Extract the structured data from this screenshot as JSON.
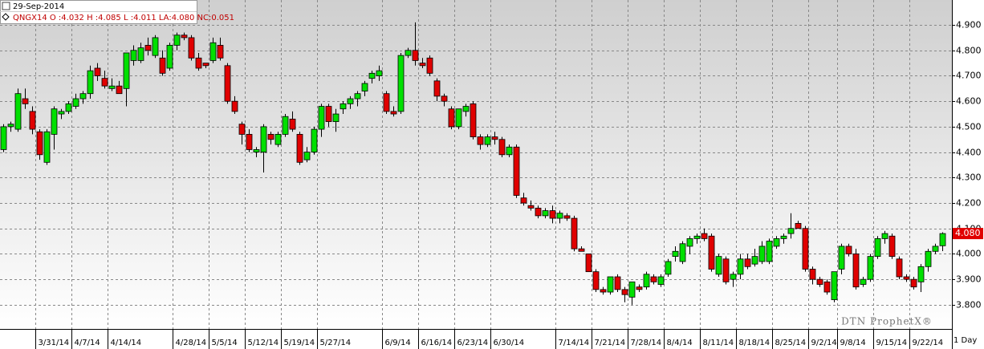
{
  "chart_data": {
    "type": "candlestick",
    "date": "29-Sep-2014",
    "legend_text": "QNGX14 O :4.032 H :4.085 L :4.011 LA:4.080 NC:0.051",
    "watermark": "DTN ProphetX®",
    "period": "1 Day",
    "up_color": "#00e000",
    "down_color": "#e00000",
    "grid": true,
    "last_label": {
      "value": 4.08,
      "label": "4.080"
    },
    "ylim": [
      3.705,
      4.998
    ],
    "yticks": [
      {
        "value": 3.8,
        "label": "3.800"
      },
      {
        "value": 3.9,
        "label": "3.900"
      },
      {
        "value": 4.0,
        "label": "4.000"
      },
      {
        "value": 4.1,
        "label": "4.100"
      },
      {
        "value": 4.2,
        "label": "4.200"
      },
      {
        "value": 4.3,
        "label": "4.300"
      },
      {
        "value": 4.4,
        "label": "4.400"
      },
      {
        "value": 4.5,
        "label": "4.500"
      },
      {
        "value": 4.6,
        "label": "4.600"
      },
      {
        "value": 4.7,
        "label": "4.700"
      },
      {
        "value": 4.8,
        "label": "4.800"
      },
      {
        "value": 4.9,
        "label": "4.900"
      }
    ],
    "categories": [
      null,
      null,
      null,
      null,
      null,
      "3/31/14",
      null,
      null,
      null,
      null,
      "4/7/14",
      null,
      null,
      null,
      null,
      "4/14/14",
      null,
      null,
      null,
      null,
      null,
      null,
      null,
      null,
      "4/28/14",
      null,
      null,
      null,
      null,
      "5/5/14",
      null,
      null,
      null,
      null,
      "5/12/14",
      null,
      null,
      null,
      null,
      "5/19/14",
      null,
      null,
      null,
      null,
      "5/27/14",
      null,
      null,
      null,
      null,
      null,
      null,
      null,
      null,
      "6/9/14",
      null,
      null,
      null,
      null,
      "6/16/14",
      null,
      null,
      null,
      null,
      "6/23/14",
      null,
      null,
      null,
      null,
      "6/30/14",
      null,
      null,
      null,
      null,
      null,
      null,
      null,
      null,
      "7/14/14",
      null,
      null,
      null,
      null,
      "7/21/14",
      null,
      null,
      null,
      null,
      "7/28/14",
      null,
      null,
      null,
      null,
      "8/4/14",
      null,
      null,
      null,
      null,
      "8/11/14",
      null,
      null,
      null,
      null,
      "8/18/14",
      null,
      null,
      null,
      null,
      "8/25/14",
      null,
      null,
      null,
      null,
      "9/2/14",
      null,
      null,
      null,
      "9/8/14",
      null,
      null,
      null,
      null,
      "9/15/14",
      null,
      null,
      null,
      null,
      "9/22/14",
      null,
      null,
      null,
      null
    ],
    "ohlc": [
      [
        4.41,
        4.51,
        4.4,
        4.5
      ],
      [
        4.5,
        4.52,
        4.48,
        4.51
      ],
      [
        4.49,
        4.65,
        4.48,
        4.63
      ],
      [
        4.61,
        4.65,
        4.57,
        4.59
      ],
      [
        4.56,
        4.58,
        4.47,
        4.49
      ],
      [
        4.48,
        4.49,
        4.37,
        4.39
      ],
      [
        4.36,
        4.49,
        4.35,
        4.48
      ],
      [
        4.47,
        4.58,
        4.41,
        4.57
      ],
      [
        4.55,
        4.57,
        4.53,
        4.56
      ],
      [
        4.56,
        4.6,
        4.55,
        4.59
      ],
      [
        4.58,
        4.63,
        4.57,
        4.61
      ],
      [
        4.61,
        4.64,
        4.59,
        4.63
      ],
      [
        4.63,
        4.74,
        4.61,
        4.72
      ],
      [
        4.73,
        4.75,
        4.68,
        4.7
      ],
      [
        4.69,
        4.72,
        4.65,
        4.66
      ],
      [
        4.65,
        4.69,
        4.64,
        4.66
      ],
      [
        4.66,
        4.68,
        4.63,
        4.63
      ],
      [
        4.65,
        4.79,
        4.58,
        4.79
      ],
      [
        4.76,
        4.82,
        4.74,
        4.8
      ],
      [
        4.76,
        4.83,
        4.75,
        4.81
      ],
      [
        4.82,
        4.85,
        4.78,
        4.8
      ],
      [
        4.78,
        4.86,
        4.77,
        4.85
      ],
      [
        4.77,
        4.8,
        4.7,
        4.71
      ],
      [
        4.73,
        4.83,
        4.72,
        4.82
      ],
      [
        4.82,
        4.87,
        4.8,
        4.86
      ],
      [
        4.86,
        4.87,
        4.84,
        4.85
      ],
      [
        4.85,
        4.86,
        4.76,
        4.77
      ],
      [
        4.77,
        4.79,
        4.72,
        4.73
      ],
      [
        4.75,
        4.75,
        4.73,
        4.74
      ],
      [
        4.76,
        4.85,
        4.75,
        4.83
      ],
      [
        4.82,
        4.85,
        4.76,
        4.77
      ],
      [
        4.74,
        4.75,
        4.59,
        4.6
      ],
      [
        4.6,
        4.62,
        4.55,
        4.56
      ],
      [
        4.51,
        4.52,
        4.43,
        4.47
      ],
      [
        4.47,
        4.49,
        4.4,
        4.41
      ],
      [
        4.4,
        4.42,
        4.38,
        4.41
      ],
      [
        4.4,
        4.51,
        4.32,
        4.5
      ],
      [
        4.47,
        4.48,
        4.43,
        4.45
      ],
      [
        4.43,
        4.48,
        4.42,
        4.47
      ],
      [
        4.47,
        4.55,
        4.46,
        4.54
      ],
      [
        4.53,
        4.56,
        4.48,
        4.49
      ],
      [
        4.47,
        4.48,
        4.35,
        4.36
      ],
      [
        4.37,
        4.42,
        4.36,
        4.4
      ],
      [
        4.4,
        4.5,
        4.39,
        4.49
      ],
      [
        4.49,
        4.59,
        4.46,
        4.58
      ],
      [
        4.58,
        4.59,
        4.5,
        4.52
      ],
      [
        4.52,
        4.57,
        4.48,
        4.55
      ],
      [
        4.57,
        4.6,
        4.55,
        4.59
      ],
      [
        4.59,
        4.62,
        4.57,
        4.61
      ],
      [
        4.61,
        4.64,
        4.58,
        4.63
      ],
      [
        4.64,
        4.68,
        4.62,
        4.67
      ],
      [
        4.69,
        4.72,
        4.67,
        4.71
      ],
      [
        4.7,
        4.74,
        4.68,
        4.72
      ],
      [
        4.63,
        4.64,
        4.55,
        4.56
      ],
      [
        4.56,
        4.58,
        4.54,
        4.55
      ],
      [
        4.56,
        4.79,
        4.55,
        4.78
      ],
      [
        4.78,
        4.81,
        4.77,
        4.8
      ],
      [
        4.8,
        4.91,
        4.74,
        4.76
      ],
      [
        4.75,
        4.77,
        4.73,
        4.74
      ],
      [
        4.77,
        4.78,
        4.7,
        4.71
      ],
      [
        4.68,
        4.69,
        4.6,
        4.62
      ],
      [
        4.62,
        4.63,
        4.58,
        4.6
      ],
      [
        4.57,
        4.58,
        4.49,
        4.5
      ],
      [
        4.5,
        4.57,
        4.49,
        4.57
      ],
      [
        4.56,
        4.59,
        4.54,
        4.58
      ],
      [
        4.59,
        4.6,
        4.45,
        4.46
      ],
      [
        4.46,
        4.47,
        4.41,
        4.43
      ],
      [
        4.43,
        4.47,
        4.42,
        4.46
      ],
      [
        4.46,
        4.48,
        4.43,
        4.45
      ],
      [
        4.45,
        4.46,
        4.38,
        4.39
      ],
      [
        4.39,
        4.43,
        4.38,
        4.42
      ],
      [
        4.42,
        4.43,
        4.22,
        4.23
      ],
      [
        4.22,
        4.24,
        4.19,
        4.2
      ],
      [
        4.19,
        4.21,
        4.17,
        4.18
      ],
      [
        4.18,
        4.19,
        4.14,
        4.15
      ],
      [
        4.15,
        4.18,
        4.14,
        4.17
      ],
      [
        4.17,
        4.19,
        4.12,
        4.14
      ],
      [
        4.14,
        4.17,
        4.12,
        4.16
      ],
      [
        4.15,
        4.16,
        4.13,
        4.14
      ],
      [
        4.14,
        4.15,
        4.01,
        4.02
      ],
      [
        4.02,
        4.03,
        4.01,
        4.01
      ],
      [
        4.0,
        4.0,
        3.93,
        3.93
      ],
      [
        3.93,
        3.94,
        3.85,
        3.86
      ],
      [
        3.86,
        3.87,
        3.84,
        3.85
      ],
      [
        3.85,
        3.91,
        3.84,
        3.91
      ],
      [
        3.91,
        3.92,
        3.85,
        3.86
      ],
      [
        3.86,
        3.87,
        3.81,
        3.84
      ],
      [
        3.83,
        3.89,
        3.8,
        3.89
      ],
      [
        3.87,
        3.88,
        3.85,
        3.86
      ],
      [
        3.87,
        3.93,
        3.86,
        3.92
      ],
      [
        3.91,
        3.92,
        3.88,
        3.89
      ],
      [
        3.88,
        3.92,
        3.87,
        3.91
      ],
      [
        3.92,
        3.98,
        3.91,
        3.97
      ],
      [
        3.99,
        4.03,
        3.97,
        4.01
      ],
      [
        3.97,
        4.05,
        3.96,
        4.04
      ],
      [
        4.03,
        4.07,
        4.0,
        4.06
      ],
      [
        4.06,
        4.08,
        4.04,
        4.07
      ],
      [
        4.08,
        4.1,
        4.05,
        4.06
      ],
      [
        4.07,
        4.08,
        3.93,
        3.94
      ],
      [
        3.92,
        4.0,
        3.91,
        3.99
      ],
      [
        3.98,
        3.99,
        3.88,
        3.89
      ],
      [
        3.9,
        3.93,
        3.87,
        3.92
      ],
      [
        3.92,
        4.0,
        3.9,
        3.98
      ],
      [
        3.98,
        4.0,
        3.94,
        3.95
      ],
      [
        3.96,
        4.02,
        3.95,
        3.99
      ],
      [
        3.97,
        4.05,
        3.96,
        4.03
      ],
      [
        3.97,
        4.06,
        3.96,
        4.05
      ],
      [
        4.03,
        4.07,
        4.02,
        4.06
      ],
      [
        4.06,
        4.08,
        4.04,
        4.07
      ],
      [
        4.08,
        4.16,
        4.06,
        4.1
      ],
      [
        4.12,
        4.13,
        4.1,
        4.1
      ],
      [
        4.1,
        4.11,
        3.93,
        3.94
      ],
      [
        3.94,
        3.95,
        3.88,
        3.9
      ],
      [
        3.9,
        3.91,
        3.87,
        3.88
      ],
      [
        3.89,
        3.9,
        3.84,
        3.85
      ],
      [
        3.82,
        3.93,
        3.81,
        3.93
      ],
      [
        3.94,
        4.04,
        3.92,
        4.03
      ],
      [
        4.03,
        4.04,
        3.99,
        4.0
      ],
      [
        4.0,
        4.02,
        3.86,
        3.87
      ],
      [
        3.88,
        3.91,
        3.87,
        3.9
      ],
      [
        3.9,
        4.0,
        3.89,
        3.99
      ],
      [
        3.99,
        4.07,
        3.98,
        4.06
      ],
      [
        4.06,
        4.09,
        4.04,
        4.08
      ],
      [
        4.07,
        4.08,
        3.98,
        3.99
      ],
      [
        3.98,
        3.99,
        3.9,
        3.91
      ],
      [
        3.91,
        3.92,
        3.89,
        3.9
      ],
      [
        3.9,
        3.91,
        3.86,
        3.87
      ],
      [
        3.89,
        3.96,
        3.85,
        3.95
      ],
      [
        3.95,
        4.02,
        3.93,
        4.01
      ],
      [
        4.01,
        4.04,
        4.0,
        4.03
      ],
      [
        4.032,
        4.085,
        4.011,
        4.08
      ]
    ]
  }
}
